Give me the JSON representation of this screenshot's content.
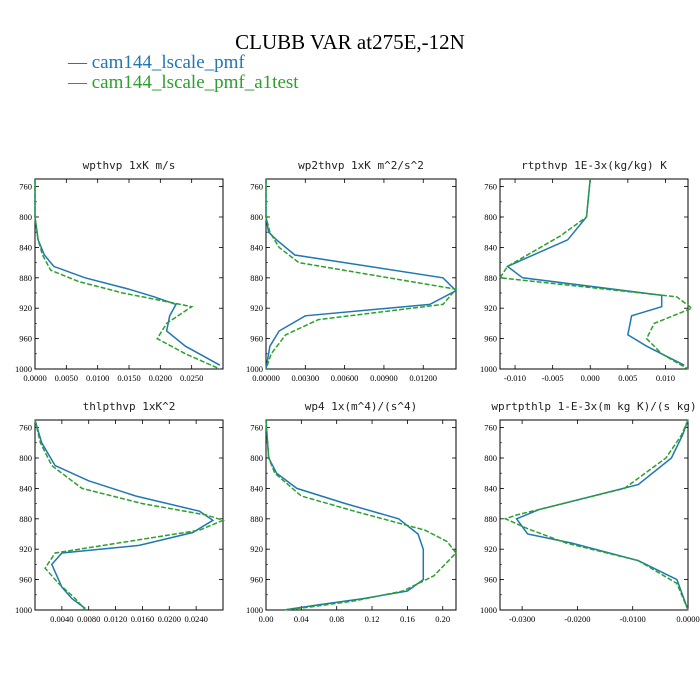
{
  "title": "CLUBB VAR at275E,-12N",
  "legend": [
    {
      "label": "cam144_lscale_pmf",
      "color": "#1f77b4",
      "dash": ""
    },
    {
      "label": "cam144_lscale_pmf_a1test",
      "color": "#2ca02c",
      "dash": "5,2"
    }
  ],
  "chart_data": [
    {
      "type": "line",
      "title": "wpthvp  1xK m/s",
      "xlim": [
        0,
        0.03
      ],
      "ylim": [
        1000,
        750
      ],
      "xticks": [
        0,
        0.005,
        0.01,
        0.015,
        0.02,
        0.025
      ],
      "xticklabels": [
        "0.0000",
        "0.0050",
        "0.0100",
        "0.0150",
        "0.0200",
        "0.0250"
      ],
      "yticks": [
        760,
        800,
        840,
        880,
        920,
        960,
        1000
      ],
      "series": [
        {
          "name": "cam144_lscale_pmf",
          "x": [
            0,
            0,
            0.0005,
            0.0015,
            0.003,
            0.008,
            0.015,
            0.019,
            0.0225,
            0.0215,
            0.021,
            0.024,
            0.0295
          ],
          "y": [
            750,
            800,
            830,
            850,
            865,
            880,
            895,
            905,
            915,
            930,
            950,
            970,
            995
          ]
        },
        {
          "name": "cam144_lscale_pmf_a1test",
          "x": [
            0,
            0,
            0.0005,
            0.0012,
            0.0025,
            0.007,
            0.014,
            0.019,
            0.025,
            0.021,
            0.0195,
            0.024,
            0.0295
          ],
          "y": [
            750,
            800,
            830,
            850,
            870,
            885,
            900,
            908,
            918,
            940,
            960,
            980,
            1000
          ]
        }
      ]
    },
    {
      "type": "line",
      "title": "wp2thvp  1xK m^2/s^2",
      "xlim": [
        0,
        0.0145
      ],
      "ylim": [
        1000,
        750
      ],
      "xticks": [
        0,
        0.003,
        0.006,
        0.009,
        0.012
      ],
      "xticklabels": [
        "0.00000",
        "0.00300",
        "0.00600",
        "0.00900",
        "0.01200"
      ],
      "yticks": [
        760,
        800,
        840,
        880,
        920,
        960,
        1000
      ],
      "series": [
        {
          "name": "cam144_lscale_pmf",
          "x": [
            0,
            0,
            0.0002,
            0.0008,
            0.0022,
            0.0135,
            0.0145,
            0.0125,
            0.003,
            0.001,
            0.0003,
            0
          ],
          "y": [
            750,
            800,
            820,
            830,
            850,
            880,
            897,
            915,
            930,
            950,
            970,
            1000
          ]
        },
        {
          "name": "cam144_lscale_pmf_a1test",
          "x": [
            0,
            0,
            0.0003,
            0.001,
            0.0025,
            0.0145,
            0.0135,
            0.004,
            0.0015,
            0.0004,
            0
          ],
          "y": [
            750,
            800,
            820,
            840,
            860,
            895,
            915,
            935,
            955,
            980,
            1000
          ]
        }
      ]
    },
    {
      "type": "line",
      "title": "rtpthvp  1E-3x(kg/kg) K",
      "xlim": [
        -0.012,
        0.013
      ],
      "ylim": [
        1000,
        750
      ],
      "xticks": [
        -0.01,
        -0.005,
        0,
        0.005,
        0.01
      ],
      "xticklabels": [
        "-0.010",
        "-0.005",
        "0.000",
        "0.005",
        "0.010"
      ],
      "yticks": [
        760,
        800,
        840,
        880,
        920,
        960,
        1000
      ],
      "series": [
        {
          "name": "cam144_lscale_pmf",
          "x": [
            0,
            -0.0005,
            -0.003,
            -0.011,
            -0.009,
            0.0095,
            0.0095,
            0.0055,
            0.005,
            0.0075,
            0.0125
          ],
          "y": [
            750,
            800,
            830,
            865,
            880,
            903,
            918,
            930,
            955,
            970,
            995
          ]
        },
        {
          "name": "cam144_lscale_pmf_a1test",
          "x": [
            0,
            -0.0005,
            -0.004,
            -0.011,
            -0.012,
            0.0115,
            0.0135,
            0.0085,
            0.0075,
            0.0095,
            0.013
          ],
          "y": [
            750,
            800,
            825,
            865,
            880,
            905,
            920,
            940,
            960,
            980,
            1000
          ]
        }
      ]
    },
    {
      "type": "line",
      "title": "thlpthvp  1xK^2",
      "xlim": [
        0,
        0.028
      ],
      "ylim": [
        1000,
        750
      ],
      "xticks": [
        0.004,
        0.008,
        0.012,
        0.016,
        0.02,
        0.024
      ],
      "xticklabels": [
        "0.0040",
        "0.0080",
        "0.0120",
        "0.0160",
        "0.0200",
        "0.0240"
      ],
      "yticks": [
        760,
        800,
        840,
        880,
        920,
        960,
        1000
      ],
      "series": [
        {
          "name": "cam144_lscale_pmf",
          "x": [
            0,
            0.001,
            0.003,
            0.008,
            0.015,
            0.0245,
            0.0265,
            0.0235,
            0.0155,
            0.004,
            0.0025,
            0.004,
            0.0055,
            0.0075
          ],
          "y": [
            750,
            780,
            810,
            830,
            850,
            870,
            882,
            898,
            915,
            925,
            940,
            970,
            985,
            998
          ]
        },
        {
          "name": "cam144_lscale_pmf_a1test",
          "x": [
            0,
            0.0008,
            0.0025,
            0.007,
            0.016,
            0.0255,
            0.028,
            0.0245,
            0.003,
            0.0015,
            0.0035,
            0.006,
            0.0075
          ],
          "y": [
            750,
            780,
            810,
            840,
            860,
            875,
            882,
            895,
            925,
            945,
            965,
            985,
            1000
          ]
        }
      ]
    },
    {
      "type": "line",
      "title": "wp4  1x(m^4)/(s^4)",
      "xlim": [
        0,
        0.215
      ],
      "ylim": [
        1000,
        750
      ],
      "xticks": [
        0,
        0.04,
        0.08,
        0.12,
        0.16,
        0.2
      ],
      "xticklabels": [
        "0.00",
        "0.04",
        "0.08",
        "0.12",
        "0.16",
        "0.20"
      ],
      "yticks": [
        760,
        800,
        840,
        880,
        920,
        960,
        1000
      ],
      "series": [
        {
          "name": "cam144_lscale_pmf",
          "x": [
            0,
            0.003,
            0.012,
            0.035,
            0.09,
            0.15,
            0.172,
            0.178,
            0.178,
            0.16,
            0.11,
            0.06,
            0.02
          ],
          "y": [
            750,
            800,
            820,
            840,
            860,
            880,
            900,
            920,
            960,
            975,
            985,
            993,
            1000
          ]
        },
        {
          "name": "cam144_lscale_pmf_a1test",
          "x": [
            0,
            0.003,
            0.01,
            0.04,
            0.1,
            0.18,
            0.205,
            0.215,
            0.19,
            0.155,
            0.1,
            0.05,
            0.02
          ],
          "y": [
            750,
            800,
            820,
            850,
            870,
            895,
            910,
            925,
            955,
            975,
            988,
            996,
            1000
          ]
        }
      ]
    },
    {
      "type": "line",
      "title": "wprtpthlp  1-E-3x(m kg K)/(s kg)",
      "xlim": [
        -0.034,
        0
      ],
      "ylim": [
        1000,
        750
      ],
      "xticks": [
        -0.03,
        -0.02,
        -0.01,
        0
      ],
      "xticklabels": [
        "-0.0300",
        "-0.0200",
        "-0.0100",
        "0.0000"
      ],
      "yticks": [
        760,
        800,
        840,
        880,
        920,
        960,
        1000
      ],
      "series": [
        {
          "name": "cam144_lscale_pmf",
          "x": [
            0,
            -0.001,
            -0.003,
            -0.009,
            -0.027,
            -0.031,
            -0.029,
            -0.021,
            -0.009,
            -0.002,
            0
          ],
          "y": [
            750,
            770,
            800,
            835,
            868,
            880,
            900,
            912,
            935,
            960,
            1000
          ]
        },
        {
          "name": "cam144_lscale_pmf_a1test",
          "x": [
            0,
            -0.0012,
            -0.004,
            -0.0115,
            -0.031,
            -0.033,
            -0.029,
            -0.022,
            -0.009,
            -0.002,
            0
          ],
          "y": [
            750,
            770,
            800,
            840,
            875,
            880,
            893,
            912,
            935,
            965,
            1000
          ]
        }
      ]
    }
  ]
}
